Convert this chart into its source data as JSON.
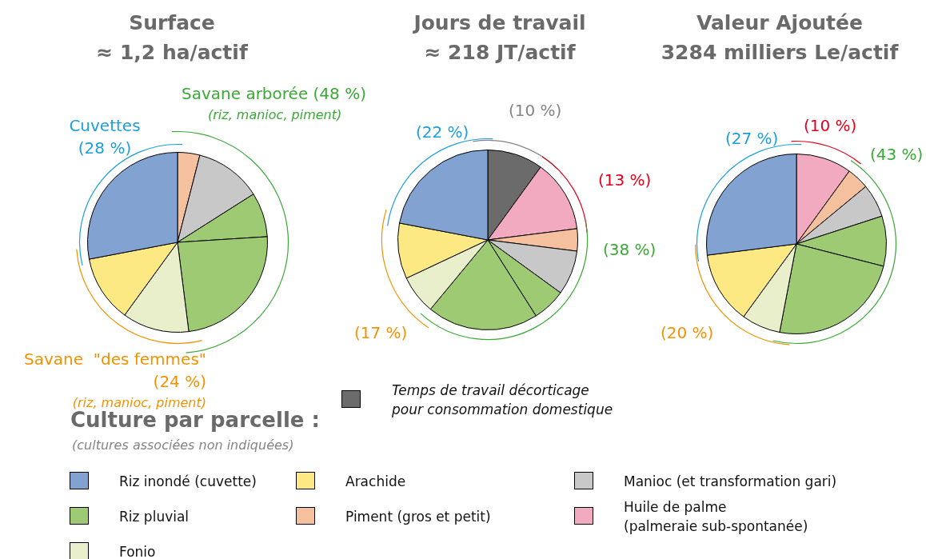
{
  "chart_data": [
    {
      "type": "pie",
      "title": "Surface",
      "subtitle": "≈ 1,2 ha/actif",
      "categories": [
        null,
        null,
        null,
        null,
        null,
        null,
        null
      ],
      "values": [
        4,
        12,
        8,
        24,
        12,
        12,
        28
      ],
      "colors": [
        "#f5c09e",
        "#c8c8c8",
        "#9dca73",
        "#9dca73",
        "#e9efcb",
        "#fce984",
        "#82a2d2"
      ],
      "annotations": [
        "Cuvettes\n(28 %)",
        "Savane arborée (48 %)",
        "(riz, manioc, piment)",
        "Savane  \"des femmes\"\n(24 %)",
        "(riz, manioc, piment)"
      ]
    },
    {
      "type": "pie",
      "title": "Jours de travail",
      "subtitle": "≈ 218 JT/actif",
      "categories": [
        "Temps de travail décorticage\npour consommation domestique",
        "Huile de palme\n(palmeraie sub-spontanée)",
        "Piment (gros et petit)",
        "Manioc (et transformation gari)",
        "Riz pluvial",
        null,
        "Fonio",
        "Arachide",
        "Riz inondé (cuvette)"
      ],
      "values": [
        10,
        13,
        4,
        8,
        6,
        20,
        7,
        10,
        22
      ],
      "colors": [
        "#6b6b6b",
        "#f2aac1",
        "#f5c09e",
        "#c8c8c8",
        "#9dca73",
        "#9dca73",
        "#e9efcb",
        "#fce984",
        "#82a2d2"
      ],
      "legend": "bottom",
      "legend_title": "Culture par parcelle :",
      "annotations": [
        "(10 %)",
        "(22 %)",
        "(13 %)",
        "(38 %)",
        "(17 %)",
        "(cultures associées non indiquées)"
      ]
    },
    {
      "type": "pie",
      "title": "Valeur Ajoutée",
      "subtitle": "3284 milliers Le/actif",
      "categories": [
        null,
        null,
        null,
        null,
        null,
        null,
        null,
        null
      ],
      "values": [
        10,
        4,
        6,
        9,
        24,
        7,
        13,
        27
      ],
      "colors": [
        "#f2aac1",
        "#f5c09e",
        "#c8c8c8",
        "#9dca73",
        "#9dca73",
        "#e9efcb",
        "#fce984",
        "#82a2d2"
      ],
      "annotations": [
        "(27 %)",
        "(10 %)",
        "(43 %)",
        "(20 %)"
      ]
    }
  ]
}
